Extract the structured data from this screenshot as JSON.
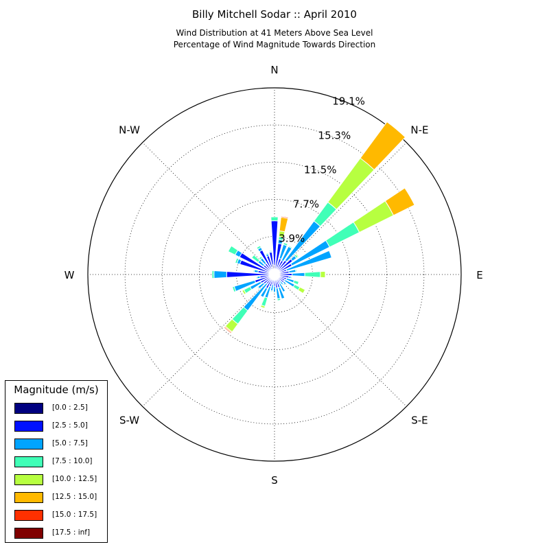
{
  "chart_data": {
    "type": "windrose",
    "title": "Billy Mitchell Sodar :: April 2010",
    "subtitle_lines": [
      "Wind Distribution at 41 Meters Above Sea Level",
      "Percentage of Wind Magnitude Towards Direction"
    ],
    "direction_labels": [
      {
        "angle_deg": 0,
        "label": "N"
      },
      {
        "angle_deg": 45,
        "label": "N-E"
      },
      {
        "angle_deg": 90,
        "label": "E"
      },
      {
        "angle_deg": 135,
        "label": "S-E"
      },
      {
        "angle_deg": 180,
        "label": "S"
      },
      {
        "angle_deg": 225,
        "label": "S-W"
      },
      {
        "angle_deg": 270,
        "label": "W"
      },
      {
        "angle_deg": 315,
        "label": "N-W"
      }
    ],
    "radial_ticks": [
      3.9,
      7.7,
      11.5,
      15.3,
      19.1
    ],
    "radial_tick_labels": [
      "3.9%",
      "7.7%",
      "11.5%",
      "15.3%",
      "19.1%"
    ],
    "r_max": 19.1,
    "grid": true,
    "legend_title": "Magnitude (m/s)",
    "legend_placement": "lower-left",
    "bins": [
      {
        "label": "[0.0 : 2.5]",
        "color": "#000080"
      },
      {
        "label": "[2.5 : 5.0]",
        "color": "#0010ff"
      },
      {
        "label": "[5.0 : 7.5]",
        "color": "#00a4ff"
      },
      {
        "label": "[7.5 : 10.0]",
        "color": "#40ffb7"
      },
      {
        "label": "[10.0 : 12.5]",
        "color": "#b7ff40"
      },
      {
        "label": "[12.5 : 15.0]",
        "color": "#ffb900"
      },
      {
        "label": "[15.0 : 17.5]",
        "color": "#ff3000"
      },
      {
        "label": "[17.5 : inf]",
        "color": "#800000"
      }
    ],
    "sectors": [
      {
        "direction_deg": 0,
        "cumulative": [
          0.9,
          5.5,
          5.5,
          5.9,
          5.9,
          5.9,
          5.9,
          5.9
        ]
      },
      {
        "direction_deg": 10,
        "cumulative": [
          0.5,
          3.2,
          3.6,
          3.9,
          4.5,
          5.9,
          6.0,
          6.0
        ]
      },
      {
        "direction_deg": 20,
        "cumulative": [
          0.5,
          1.7,
          3.2,
          3.4,
          3.4,
          3.4,
          3.4,
          3.4
        ]
      },
      {
        "direction_deg": 30,
        "cumulative": [
          0.5,
          1.6,
          3.2,
          3.3,
          3.3,
          3.3,
          3.3,
          3.3
        ]
      },
      {
        "direction_deg": 40,
        "cumulative": [
          0.6,
          1.8,
          6.8,
          9.2,
          14.8,
          19.4,
          19.4,
          19.4
        ]
      },
      {
        "direction_deg": 50,
        "cumulative": [
          0.5,
          2.3,
          2.8,
          3.0,
          3.1,
          3.1,
          3.1,
          3.1
        ]
      },
      {
        "direction_deg": 60,
        "cumulative": [
          0.5,
          2.0,
          6.3,
          9.7,
          13.6,
          16.0,
          16.0,
          16.0
        ]
      },
      {
        "direction_deg": 70,
        "cumulative": [
          0.5,
          1.3,
          6.1,
          6.1,
          6.1,
          6.1,
          6.1,
          6.1
        ]
      },
      {
        "direction_deg": 80,
        "cumulative": [
          0.5,
          1.5,
          2.2,
          2.3,
          2.3,
          2.3,
          2.3,
          2.3
        ]
      },
      {
        "direction_deg": 90,
        "cumulative": [
          0.5,
          1.8,
          3.1,
          4.7,
          5.2,
          5.2,
          5.2,
          5.2
        ]
      },
      {
        "direction_deg": 100,
        "cumulative": [
          0.5,
          1.5,
          1.7,
          1.8,
          1.8,
          1.8,
          1.8,
          1.8
        ]
      },
      {
        "direction_deg": 110,
        "cumulative": [
          0.4,
          1.3,
          2.1,
          2.6,
          2.6,
          2.6,
          2.6,
          2.6
        ]
      },
      {
        "direction_deg": 120,
        "cumulative": [
          0.4,
          1.2,
          2.3,
          2.9,
          3.5,
          3.5,
          3.5,
          3.5
        ]
      },
      {
        "direction_deg": 130,
        "cumulative": [
          0.4,
          1.2,
          1.5,
          1.6,
          1.6,
          1.6,
          1.6,
          1.6
        ]
      },
      {
        "direction_deg": 140,
        "cumulative": [
          0.3,
          0.9,
          1.3,
          1.4,
          1.4,
          1.4,
          1.4,
          1.4
        ]
      },
      {
        "direction_deg": 150,
        "cumulative": [
          0.4,
          1.0,
          2.0,
          2.0,
          2.0,
          2.0,
          2.0,
          2.0
        ]
      },
      {
        "direction_deg": 160,
        "cumulative": [
          0.4,
          1.4,
          2.6,
          2.6,
          2.6,
          2.6,
          2.6,
          2.6
        ]
      },
      {
        "direction_deg": 170,
        "cumulative": [
          0.4,
          1.4,
          2.5,
          2.7,
          2.7,
          2.7,
          2.7,
          2.7
        ]
      },
      {
        "direction_deg": 180,
        "cumulative": [
          0.4,
          1.2,
          1.8,
          1.9,
          1.9,
          1.9,
          1.9,
          1.9
        ]
      },
      {
        "direction_deg": 190,
        "cumulative": [
          0.4,
          1.0,
          1.7,
          1.8,
          1.8,
          1.8,
          1.8,
          1.8
        ]
      },
      {
        "direction_deg": 200,
        "cumulative": [
          0.4,
          1.3,
          2.5,
          3.4,
          3.6,
          3.6,
          3.6,
          3.6
        ]
      },
      {
        "direction_deg": 210,
        "cumulative": [
          0.4,
          1.6,
          2.6,
          2.6,
          2.6,
          2.6,
          2.6,
          2.6
        ]
      },
      {
        "direction_deg": 220,
        "cumulative": [
          0.4,
          1.2,
          4.6,
          6.3,
          7.3,
          7.4,
          7.5,
          7.5
        ]
      },
      {
        "direction_deg": 230,
        "cumulative": [
          0.4,
          1.4,
          2.1,
          2.2,
          2.2,
          2.2,
          2.2,
          2.2
        ]
      },
      {
        "direction_deg": 240,
        "cumulative": [
          0.4,
          1.6,
          2.8,
          3.5,
          3.7,
          3.7,
          3.7,
          3.7
        ]
      },
      {
        "direction_deg": 250,
        "cumulative": [
          0.4,
          2.1,
          4.3,
          4.5,
          4.5,
          4.5,
          4.5,
          4.5
        ]
      },
      {
        "direction_deg": 260,
        "cumulative": [
          0.4,
          1.5,
          1.8,
          1.9,
          1.9,
          1.9,
          1.9,
          1.9
        ]
      },
      {
        "direction_deg": 270,
        "cumulative": [
          0.5,
          4.9,
          6.2,
          6.4,
          6.4,
          6.4,
          6.4,
          6.4
        ]
      },
      {
        "direction_deg": 280,
        "cumulative": [
          0.4,
          1.7,
          2.1,
          2.2,
          2.2,
          2.2,
          2.2,
          2.2
        ]
      },
      {
        "direction_deg": 290,
        "cumulative": [
          0.4,
          3.7,
          4.0,
          4.2,
          4.2,
          4.2,
          4.2,
          4.2
        ]
      },
      {
        "direction_deg": 300,
        "cumulative": [
          0.5,
          4.0,
          4.5,
          5.3,
          5.3,
          5.3,
          5.3,
          5.3
        ]
      },
      {
        "direction_deg": 310,
        "cumulative": [
          0.5,
          1.4,
          2.1,
          2.9,
          2.9,
          2.9,
          2.9,
          2.9
        ]
      },
      {
        "direction_deg": 320,
        "cumulative": [
          0.5,
          1.4,
          2.1,
          2.3,
          2.3,
          2.3,
          2.3,
          2.3
        ]
      },
      {
        "direction_deg": 330,
        "cumulative": [
          0.6,
          2.8,
          3.1,
          3.3,
          3.3,
          3.3,
          3.3,
          3.3
        ]
      },
      {
        "direction_deg": 340,
        "cumulative": [
          0.8,
          2.0,
          2.2,
          2.3,
          2.3,
          2.3,
          2.3,
          2.3
        ]
      },
      {
        "direction_deg": 350,
        "cumulative": [
          1.0,
          2.3,
          2.4,
          2.5,
          2.5,
          2.5,
          2.5,
          2.5
        ]
      }
    ]
  }
}
